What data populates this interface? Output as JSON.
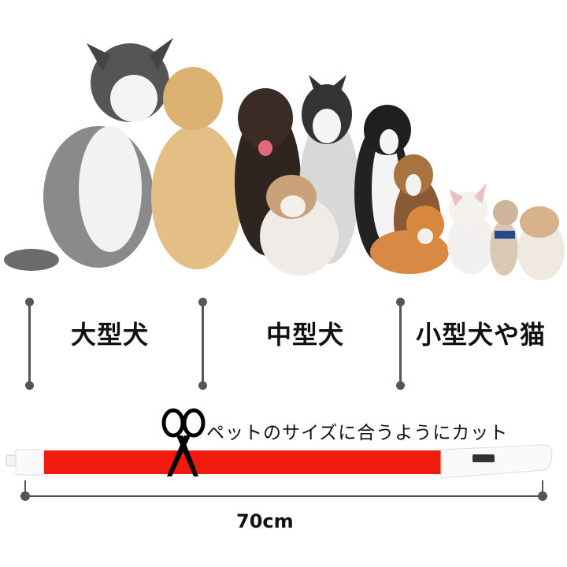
{
  "categories": {
    "large": "大型犬",
    "medium": "中型犬",
    "small": "小型犬や猫"
  },
  "cut_instruction": "ペットのサイズに合うようにカット",
  "length": "70cm",
  "colors": {
    "collar_red": "#f01a0e",
    "collar_end": "#ffffff",
    "marker": "#555555"
  }
}
